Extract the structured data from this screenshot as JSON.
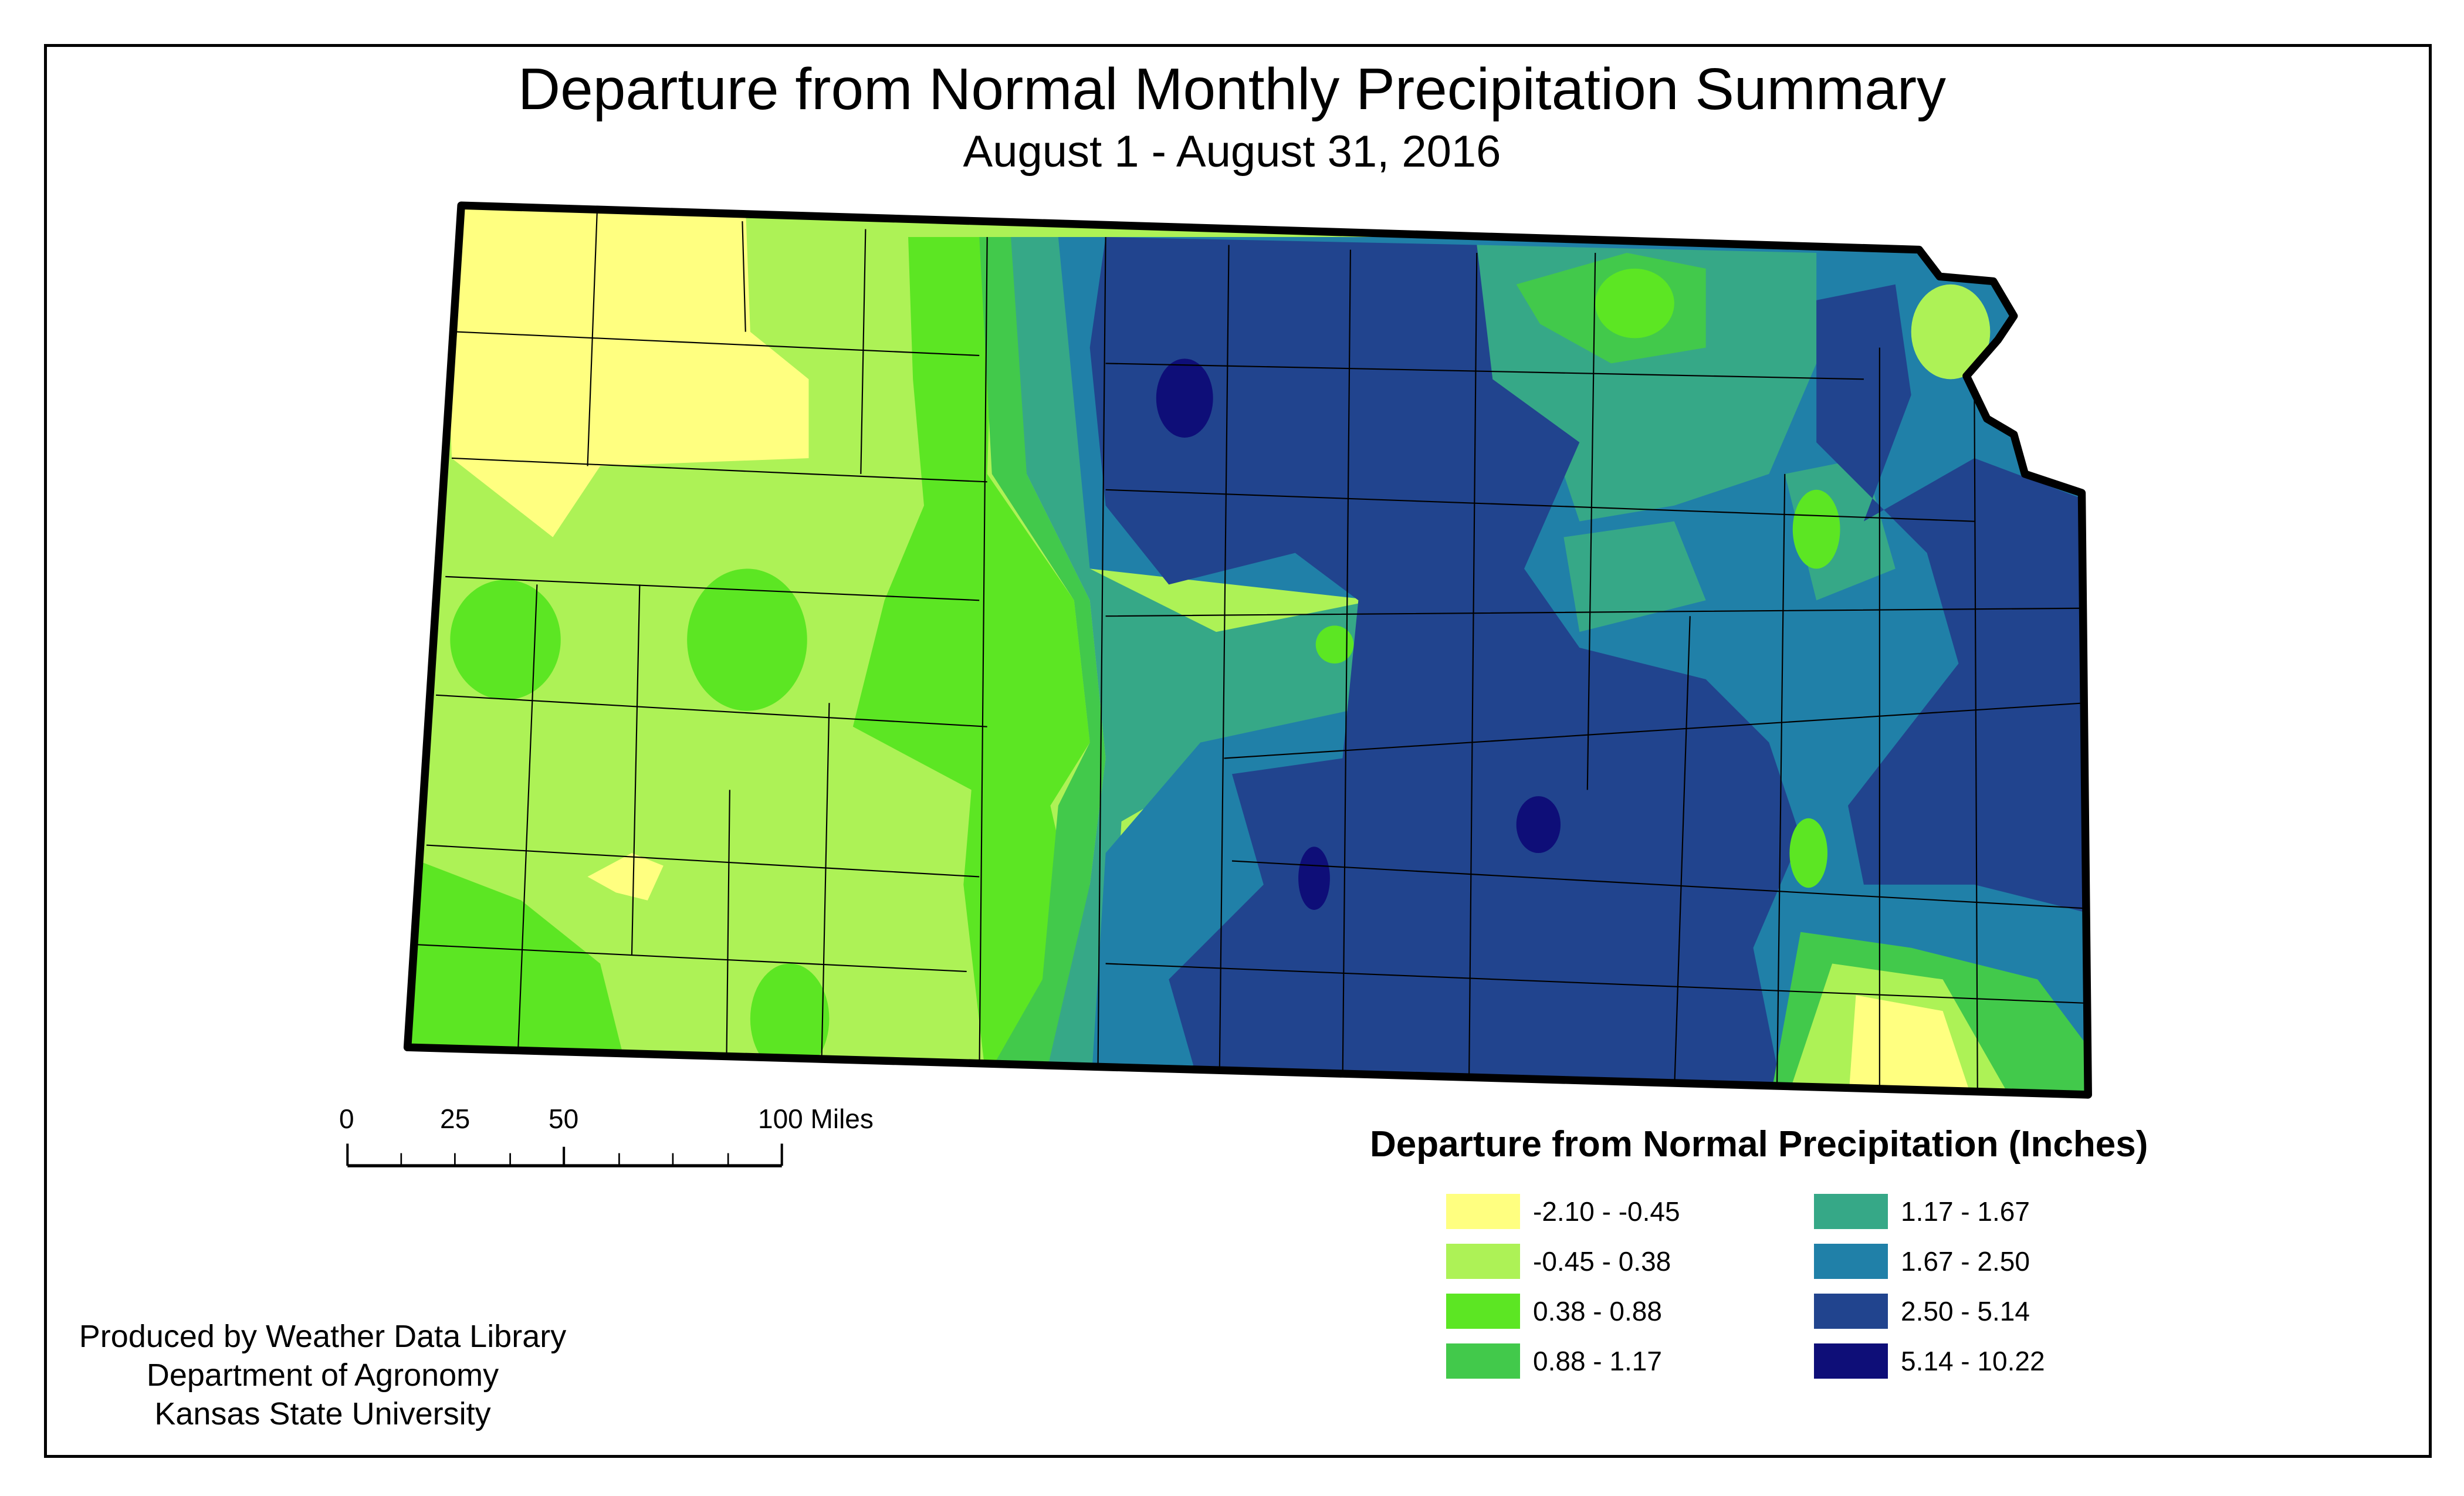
{
  "title": "Departure from Normal Monthly Precipitation Summary",
  "subtitle": "August 1 - August 31, 2016",
  "scale_bar": {
    "labels": [
      "0",
      "25",
      "50",
      "100 Miles"
    ]
  },
  "credits": [
    "Produced by Weather Data Library",
    "Department of Agronomy",
    "Kansas State University"
  ],
  "legend": {
    "title": "Departure from Normal Precipitation (Inches)",
    "classes": [
      {
        "label": "-2.10 - -0.45",
        "color": "#ffff80"
      },
      {
        "label": "-0.45 - 0.38",
        "color": "#adf256"
      },
      {
        "label": "0.38 - 0.88",
        "color": "#5ce623"
      },
      {
        "label": "0.88 - 1.17",
        "color": "#42c94b"
      },
      {
        "label": "1.17 - 1.67",
        "color": "#36a887"
      },
      {
        "label": "1.67 - 2.50",
        "color": "#2080a8"
      },
      {
        "label": "2.50 - 5.14",
        "color": "#21448e"
      },
      {
        "label": "5.14 - 10.22",
        "color": "#0e0e78"
      }
    ]
  }
}
